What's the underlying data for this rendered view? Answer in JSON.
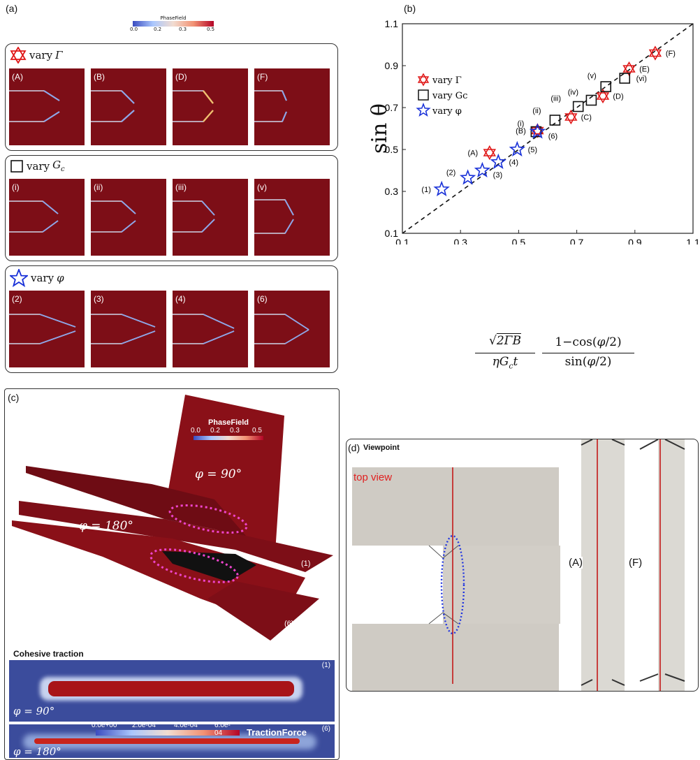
{
  "panel_a": {
    "tag": "(a)",
    "colorbar": {
      "title": "PhaseField",
      "ticks": [
        "0.0",
        "0.2",
        "0.3",
        "0.5"
      ]
    },
    "groups": [
      {
        "header": "vary",
        "symbol": "Γ",
        "icon": "red-star-of-david-icon",
        "color": "#e01818",
        "labels": [
          "(A)",
          "(B)",
          "(D)",
          "(F)"
        ]
      },
      {
        "header": "vary",
        "symbol": "G",
        "sub": "c",
        "icon": "black-square-icon",
        "color": "#111111",
        "labels": [
          "(i)",
          "(ii)",
          "(iii)",
          "(v)"
        ]
      },
      {
        "header": "vary",
        "symbol": "φ",
        "icon": "blue-star-icon",
        "color": "#1830d8",
        "labels": [
          "(2)",
          "(3)",
          "(4)",
          "(6)"
        ]
      }
    ]
  },
  "panel_b": {
    "tag": "(b)",
    "legend": [
      {
        "text": "vary Γ",
        "color": "#e01818"
      },
      {
        "text": "vary Gc",
        "color": "#111111"
      },
      {
        "text": "vary φ",
        "color": "#1830d8"
      }
    ],
    "ylabel": "sin θ",
    "xlabel": "√(2ΓB)/(ηGc t) · (1−cos(φ/2))/sin(φ/2)"
  },
  "chart_data": {
    "type": "scatter",
    "xlim": [
      0.1,
      1.1
    ],
    "ylim": [
      0.1,
      1.1
    ],
    "xticks": [
      "0.1",
      "0.3",
      "0.5",
      "0.7",
      "0.9",
      "1.1"
    ],
    "yticks": [
      "0.1",
      "0.3",
      "0.5",
      "0.7",
      "0.9",
      "1.1"
    ],
    "reference_line": "y = x (dashed)",
    "series": [
      {
        "name": "vary Γ",
        "marker": "hexagram",
        "color": "#e01818",
        "points": [
          {
            "label": "(A)",
            "x": 0.4,
            "y": 0.485
          },
          {
            "label": "(B)",
            "x": 0.565,
            "y": 0.59
          },
          {
            "label": "(C)",
            "x": 0.68,
            "y": 0.655
          },
          {
            "label": "(D)",
            "x": 0.79,
            "y": 0.755
          },
          {
            "label": "(E)",
            "x": 0.88,
            "y": 0.885
          },
          {
            "label": "(F)",
            "x": 0.97,
            "y": 0.96
          }
        ]
      },
      {
        "name": "vary Gc",
        "marker": "square",
        "color": "#111111",
        "points": [
          {
            "label": "(i)",
            "x": 0.56,
            "y": 0.585
          },
          {
            "label": "(ii)",
            "x": 0.625,
            "y": 0.64
          },
          {
            "label": "(iii)",
            "x": 0.705,
            "y": 0.705
          },
          {
            "label": "(iv)",
            "x": 0.75,
            "y": 0.735
          },
          {
            "label": "(v)",
            "x": 0.8,
            "y": 0.8
          },
          {
            "label": "(vi)",
            "x": 0.865,
            "y": 0.84
          }
        ]
      },
      {
        "name": "vary φ",
        "marker": "star",
        "color": "#1830d8",
        "points": [
          {
            "label": "(1)",
            "x": 0.235,
            "y": 0.31
          },
          {
            "label": "(2)",
            "x": 0.325,
            "y": 0.365
          },
          {
            "label": "(3)",
            "x": 0.375,
            "y": 0.4
          },
          {
            "label": "(4)",
            "x": 0.43,
            "y": 0.44
          },
          {
            "label": "(5)",
            "x": 0.495,
            "y": 0.5
          },
          {
            "label": "(6)",
            "x": 0.565,
            "y": 0.585
          }
        ]
      }
    ]
  },
  "panel_c": {
    "tag": "(c)",
    "colorbar": {
      "title": "PhaseField",
      "ticks": [
        "0.0",
        "0.2",
        "0.3",
        "0.5"
      ]
    },
    "phi90": "φ = 90°",
    "phi180": "φ = 180°",
    "label1": "(1)",
    "label6": "(6)",
    "cohesive_title": "Cohesive traction",
    "strip1": {
      "label": "(1)",
      "phi": "φ = 90°"
    },
    "strip2": {
      "label": "(6)",
      "phi": "φ = 180°",
      "ticks": [
        "0.0e+00",
        "2.0e-04",
        "4.0e-04",
        "6.0e-04"
      ],
      "title": "TractionForce"
    }
  },
  "panel_d": {
    "tag": "(d)",
    "title": "Viewpoint",
    "top_view": "top view",
    "labelA": "(A)",
    "labelF": "(F)"
  }
}
